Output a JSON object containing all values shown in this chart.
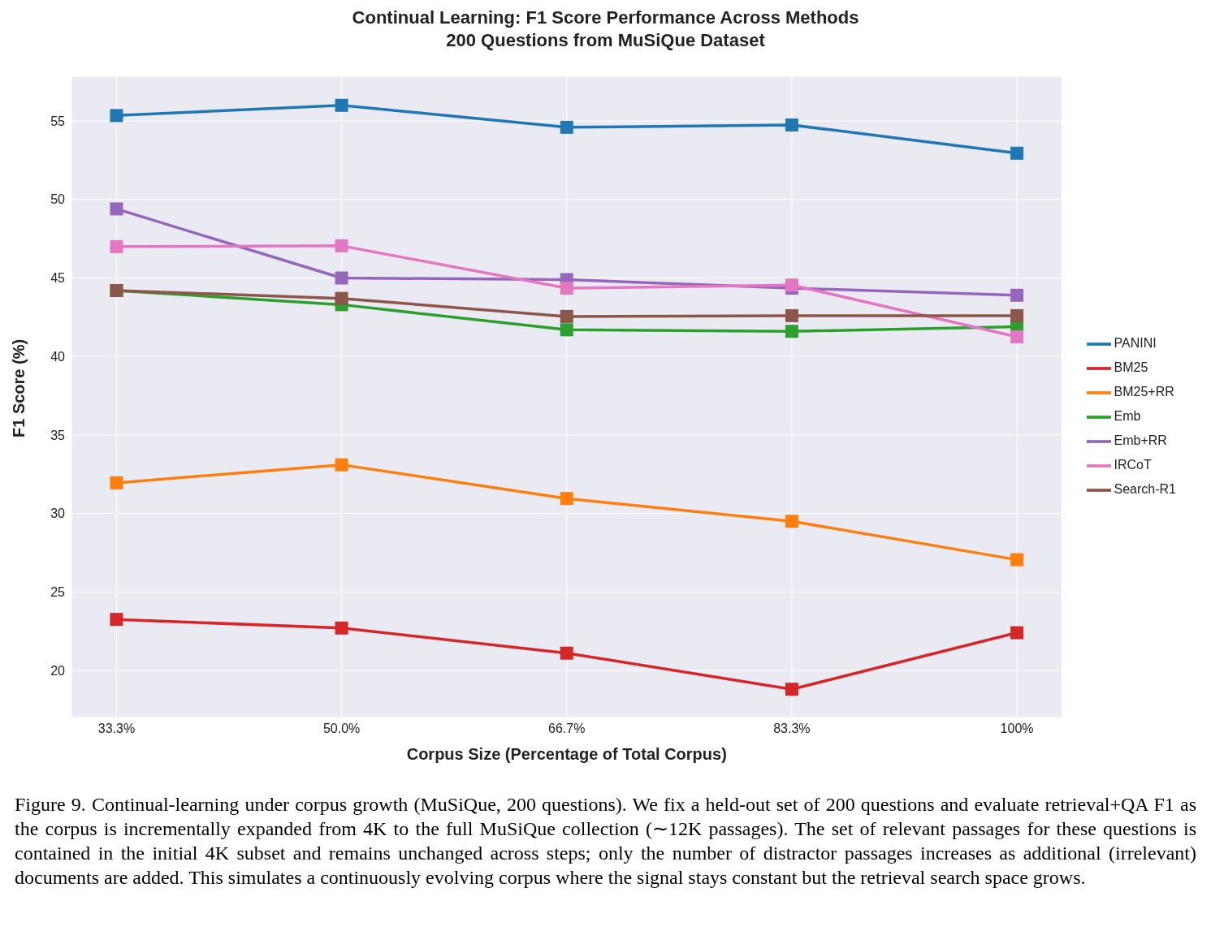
{
  "chart_data": {
    "type": "line",
    "title": "Continual Learning: F1 Score Performance Across Methods\n200 Questions from MuSiQue Dataset",
    "xlabel": "Corpus Size (Percentage of Total Corpus)",
    "ylabel": "F1 Score (%)",
    "categories": [
      "33.3%",
      "50.0%",
      "66.7%",
      "83.3%",
      "100%"
    ],
    "series": [
      {
        "name": "PANINI",
        "color": "#1f77b4",
        "values": [
          55.35,
          56.0,
          54.6,
          54.75,
          52.95
        ]
      },
      {
        "name": "BM25",
        "color": "#d62728",
        "values": [
          23.25,
          22.7,
          21.1,
          18.8,
          22.4
        ]
      },
      {
        "name": "BM25+RR",
        "color": "#ff7f0e",
        "values": [
          31.95,
          33.1,
          30.95,
          29.5,
          27.05
        ]
      },
      {
        "name": "Emb",
        "color": "#2ca02c",
        "values": [
          44.2,
          43.3,
          41.7,
          41.6,
          41.9
        ]
      },
      {
        "name": "Emb+RR",
        "color": "#9467bd",
        "values": [
          49.4,
          45.0,
          44.9,
          44.35,
          43.9
        ]
      },
      {
        "name": "IRCoT",
        "color": "#e377c2",
        "values": [
          47.0,
          47.05,
          44.35,
          44.55,
          41.25
        ]
      },
      {
        "name": "Search-R1",
        "color": "#8c564b",
        "values": [
          44.2,
          43.7,
          42.55,
          42.6,
          42.6
        ]
      }
    ],
    "ylim": [
      17.0,
      57.85
    ],
    "yticks": [
      20,
      25,
      30,
      35,
      40,
      45,
      50,
      55
    ],
    "grid": true,
    "legend": "right",
    "marker": "square",
    "line_style": "solid",
    "annotations": [
      "Figure 9. Continual-learning under corpus growth (MuSiQue, 200 questions). We fix a held-out set of 200 questions and evaluate retrieval+QA F1 as the corpus is incrementally expanded from 4K to the full MuSiQue collection (∼12K passages). The set of relevant passages for these questions is contained in the initial 4K subset and remains unchanged across steps; only the number of distractor passages increases as additional (irrelevant) documents are added. This simulates a continuously evolving corpus where the signal stays constant but the retrieval search space grows."
    ]
  }
}
